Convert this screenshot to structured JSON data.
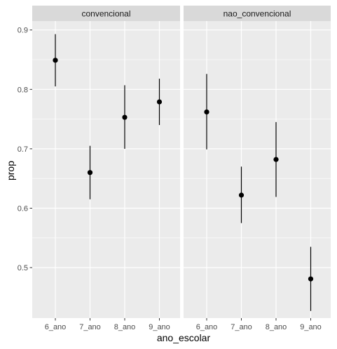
{
  "chart_data": {
    "type": "pointrange",
    "xlabel": "ano_escolar",
    "ylabel": "prop",
    "categories": [
      "6_ano",
      "7_ano",
      "8_ano",
      "9_ano"
    ],
    "ylim": [
      0.415,
      0.915
    ],
    "y_ticks": [
      0.5,
      0.6,
      0.7,
      0.8,
      0.9
    ],
    "y_tick_labels": [
      "0.5",
      "0.6",
      "0.7",
      "0.8",
      "0.9"
    ],
    "grid": true,
    "facets": [
      {
        "label": "convencional",
        "points": [
          {
            "x": "6_ano",
            "y": 0.849,
            "ymin": 0.805,
            "ymax": 0.893
          },
          {
            "x": "7_ano",
            "y": 0.66,
            "ymin": 0.615,
            "ymax": 0.705
          },
          {
            "x": "8_ano",
            "y": 0.753,
            "ymin": 0.7,
            "ymax": 0.807
          },
          {
            "x": "9_ano",
            "y": 0.779,
            "ymin": 0.74,
            "ymax": 0.818
          }
        ]
      },
      {
        "label": "nao_convencional",
        "points": [
          {
            "x": "6_ano",
            "y": 0.762,
            "ymin": 0.699,
            "ymax": 0.826
          },
          {
            "x": "7_ano",
            "y": 0.622,
            "ymin": 0.575,
            "ymax": 0.67
          },
          {
            "x": "8_ano",
            "y": 0.682,
            "ymin": 0.619,
            "ymax": 0.745
          },
          {
            "x": "9_ano",
            "y": 0.481,
            "ymin": 0.427,
            "ymax": 0.535
          }
        ]
      }
    ],
    "colors": {
      "panel_bg": "#ebebeb",
      "strip_bg": "#d9d9d9",
      "grid": "#ffffff",
      "point": "#000000"
    }
  }
}
